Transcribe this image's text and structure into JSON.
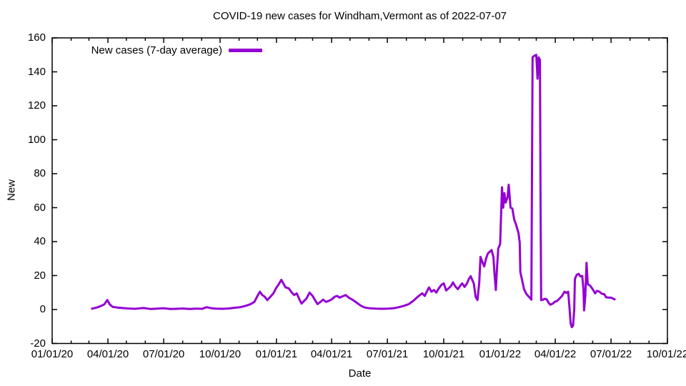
{
  "title": "COVID-19 new cases for Windham,Vermont as of 2022-07-07",
  "legend": {
    "label": "New cases (7-day average)"
  },
  "axes": {
    "x": {
      "label": "Date",
      "ticks": [
        "01/01/20",
        "04/01/20",
        "07/01/20",
        "10/01/20",
        "01/01/21",
        "04/01/21",
        "07/01/21",
        "10/01/21",
        "01/01/22",
        "04/01/22",
        "07/01/22",
        "10/01/22"
      ]
    },
    "y": {
      "label": "New",
      "ticks": [
        "160",
        "140",
        "120",
        "100",
        "80",
        "60",
        "40",
        "20",
        "0",
        "-20"
      ]
    }
  },
  "colors": {
    "line": "#9400d3",
    "axis": "#000000",
    "background": "#ffffff"
  },
  "chart_data": {
    "type": "line",
    "title": "COVID-19 new cases for Windham,Vermont as of 2022-07-07",
    "xlabel": "Date",
    "ylabel": "New",
    "x_range": [
      "2020-01-01",
      "2022-10-01"
    ],
    "ylim": [
      -20,
      160
    ],
    "grid": false,
    "legend_position": "top-left-inside",
    "series": [
      {
        "name": "New cases (7-day average)",
        "color": "#9400d3",
        "points": [
          [
            "2020-03-06",
            0.5
          ],
          [
            "2020-03-14",
            1.2
          ],
          [
            "2020-03-20",
            2
          ],
          [
            "2020-03-26",
            3
          ],
          [
            "2020-03-31",
            5.6
          ],
          [
            "2020-04-04",
            3
          ],
          [
            "2020-04-09",
            1.5
          ],
          [
            "2020-04-16",
            1.2
          ],
          [
            "2020-04-24",
            0.9
          ],
          [
            "2020-05-05",
            0.6
          ],
          [
            "2020-05-15",
            0.4
          ],
          [
            "2020-05-29",
            0.9
          ],
          [
            "2020-06-10",
            0.3
          ],
          [
            "2020-06-20",
            0.5
          ],
          [
            "2020-07-01",
            0.7
          ],
          [
            "2020-07-12",
            0.3
          ],
          [
            "2020-07-22",
            0.4
          ],
          [
            "2020-08-02",
            0.6
          ],
          [
            "2020-08-12",
            0.3
          ],
          [
            "2020-08-23",
            0.5
          ],
          [
            "2020-09-02",
            0.4
          ],
          [
            "2020-09-09",
            1.4
          ],
          [
            "2020-09-16",
            0.8
          ],
          [
            "2020-09-24",
            0.5
          ],
          [
            "2020-10-05",
            0.4
          ],
          [
            "2020-10-14",
            0.6
          ],
          [
            "2020-10-24",
            1.0
          ],
          [
            "2020-11-03",
            1.4
          ],
          [
            "2020-11-12",
            2.2
          ],
          [
            "2020-11-20",
            3.2
          ],
          [
            "2020-11-26",
            4.5
          ],
          [
            "2020-12-01",
            8
          ],
          [
            "2020-12-05",
            10.5
          ],
          [
            "2020-12-09",
            8.5
          ],
          [
            "2020-12-13",
            7.5
          ],
          [
            "2020-12-17",
            5.5
          ],
          [
            "2020-12-22",
            7.5
          ],
          [
            "2020-12-27",
            9.5
          ],
          [
            "2021-01-01",
            13
          ],
          [
            "2021-01-05",
            15
          ],
          [
            "2021-01-09",
            17.5
          ],
          [
            "2021-01-12",
            15.5
          ],
          [
            "2021-01-16",
            13
          ],
          [
            "2021-01-21",
            12.5
          ],
          [
            "2021-01-26",
            10
          ],
          [
            "2021-01-30",
            8.5
          ],
          [
            "2021-02-03",
            9.5
          ],
          [
            "2021-02-08",
            5.5
          ],
          [
            "2021-02-11",
            3.5
          ],
          [
            "2021-02-15",
            5
          ],
          [
            "2021-02-19",
            6.5
          ],
          [
            "2021-02-24",
            10
          ],
          [
            "2021-03-01",
            8
          ],
          [
            "2021-03-05",
            5.5
          ],
          [
            "2021-03-09",
            3.2
          ],
          [
            "2021-03-14",
            4.5
          ],
          [
            "2021-03-18",
            5.8
          ],
          [
            "2021-03-23",
            4.5
          ],
          [
            "2021-03-28",
            5.2
          ],
          [
            "2021-04-01",
            6
          ],
          [
            "2021-04-06",
            7.5
          ],
          [
            "2021-04-10",
            8
          ],
          [
            "2021-04-14",
            7
          ],
          [
            "2021-04-19",
            7.8
          ],
          [
            "2021-04-24",
            8.5
          ],
          [
            "2021-04-29",
            7
          ],
          [
            "2021-05-04",
            6
          ],
          [
            "2021-05-09",
            4.8
          ],
          [
            "2021-05-14",
            3.5
          ],
          [
            "2021-05-19",
            2.2
          ],
          [
            "2021-05-25",
            1.2
          ],
          [
            "2021-06-02",
            0.7
          ],
          [
            "2021-06-12",
            0.5
          ],
          [
            "2021-06-22",
            0.4
          ],
          [
            "2021-07-02",
            0.5
          ],
          [
            "2021-07-12",
            0.8
          ],
          [
            "2021-07-20",
            1.4
          ],
          [
            "2021-07-28",
            2.2
          ],
          [
            "2021-08-05",
            3.2
          ],
          [
            "2021-08-12",
            5
          ],
          [
            "2021-08-18",
            7
          ],
          [
            "2021-08-23",
            8.5
          ],
          [
            "2021-08-27",
            9.5
          ],
          [
            "2021-08-31",
            8
          ],
          [
            "2021-09-04",
            11
          ],
          [
            "2021-09-07",
            13
          ],
          [
            "2021-09-11",
            10.5
          ],
          [
            "2021-09-15",
            11.5
          ],
          [
            "2021-09-19",
            10
          ],
          [
            "2021-09-23",
            12.5
          ],
          [
            "2021-09-27",
            14.5
          ],
          [
            "2021-10-01",
            15.4
          ],
          [
            "2021-10-05",
            11.2
          ],
          [
            "2021-10-09",
            12.5
          ],
          [
            "2021-10-13",
            14
          ],
          [
            "2021-10-16",
            16
          ],
          [
            "2021-10-20",
            13.5
          ],
          [
            "2021-10-24",
            12
          ],
          [
            "2021-10-28",
            14
          ],
          [
            "2021-10-31",
            15.4
          ],
          [
            "2021-11-04",
            13.3
          ],
          [
            "2021-11-08",
            15.5
          ],
          [
            "2021-11-11",
            18
          ],
          [
            "2021-11-14",
            19.6
          ],
          [
            "2021-11-17",
            17
          ],
          [
            "2021-11-19",
            15.4
          ],
          [
            "2021-11-22",
            7.5
          ],
          [
            "2021-11-25",
            5.6
          ],
          [
            "2021-11-28",
            16
          ],
          [
            "2021-11-30",
            31
          ],
          [
            "2021-12-03",
            28
          ],
          [
            "2021-12-06",
            25.4
          ],
          [
            "2021-12-09",
            30
          ],
          [
            "2021-12-12",
            33
          ],
          [
            "2021-12-15",
            34
          ],
          [
            "2021-12-18",
            35
          ],
          [
            "2021-12-21",
            31
          ],
          [
            "2021-12-23",
            20
          ],
          [
            "2021-12-25",
            11.5
          ],
          [
            "2021-12-27",
            25
          ],
          [
            "2021-12-29",
            36
          ],
          [
            "2022-01-01",
            38.5
          ],
          [
            "2022-01-02",
            49
          ],
          [
            "2022-01-04",
            72
          ],
          [
            "2022-01-06",
            60
          ],
          [
            "2022-01-08",
            68.5
          ],
          [
            "2022-01-10",
            63
          ],
          [
            "2022-01-13",
            66
          ],
          [
            "2022-01-15",
            73.5
          ],
          [
            "2022-01-18",
            60
          ],
          [
            "2022-01-21",
            59.5
          ],
          [
            "2022-01-24",
            53
          ],
          [
            "2022-01-27",
            50
          ],
          [
            "2022-01-31",
            45
          ],
          [
            "2022-02-02",
            39.5
          ],
          [
            "2022-02-03",
            22
          ],
          [
            "2022-02-06",
            17
          ],
          [
            "2022-02-09",
            12
          ],
          [
            "2022-02-13",
            9
          ],
          [
            "2022-02-17",
            7.5
          ],
          [
            "2022-02-21",
            5.8
          ],
          [
            "2022-02-23",
            148.6
          ],
          [
            "2022-02-26",
            149.5
          ],
          [
            "2022-03-01",
            150
          ],
          [
            "2022-03-03",
            136
          ],
          [
            "2022-03-05",
            148.5
          ],
          [
            "2022-03-07",
            147
          ],
          [
            "2022-03-08",
            60
          ],
          [
            "2022-03-09",
            5.5
          ],
          [
            "2022-03-12",
            5.8
          ],
          [
            "2022-03-15",
            6.3
          ],
          [
            "2022-03-18",
            6
          ],
          [
            "2022-03-21",
            4
          ],
          [
            "2022-03-24",
            2.8
          ],
          [
            "2022-03-28",
            3.5
          ],
          [
            "2022-03-31",
            4.5
          ],
          [
            "2022-04-04",
            5
          ],
          [
            "2022-04-08",
            6.5
          ],
          [
            "2022-04-12",
            8
          ],
          [
            "2022-04-16",
            10.5
          ],
          [
            "2022-04-19",
            9.8
          ],
          [
            "2022-04-22",
            10.5
          ],
          [
            "2022-04-24",
            2
          ],
          [
            "2022-04-26",
            -8
          ],
          [
            "2022-04-28",
            -10.4
          ],
          [
            "2022-04-30",
            -9.5
          ],
          [
            "2022-05-02",
            0
          ],
          [
            "2022-05-03",
            18
          ],
          [
            "2022-05-06",
            20.5
          ],
          [
            "2022-05-09",
            21
          ],
          [
            "2022-05-12",
            19.5
          ],
          [
            "2022-05-15",
            19.8
          ],
          [
            "2022-05-17",
            12
          ],
          [
            "2022-05-18",
            -0.5
          ],
          [
            "2022-05-20",
            8
          ],
          [
            "2022-05-22",
            27.5
          ],
          [
            "2022-05-24",
            15
          ],
          [
            "2022-05-28",
            14
          ],
          [
            "2022-06-01",
            12
          ],
          [
            "2022-06-05",
            9.5
          ],
          [
            "2022-06-08",
            11
          ],
          [
            "2022-06-12",
            10.5
          ],
          [
            "2022-06-16",
            9.3
          ],
          [
            "2022-06-20",
            9
          ],
          [
            "2022-06-23",
            7.2
          ],
          [
            "2022-06-27",
            7
          ],
          [
            "2022-07-01",
            7
          ],
          [
            "2022-07-04",
            6.5
          ],
          [
            "2022-07-07",
            6
          ]
        ]
      }
    ]
  }
}
